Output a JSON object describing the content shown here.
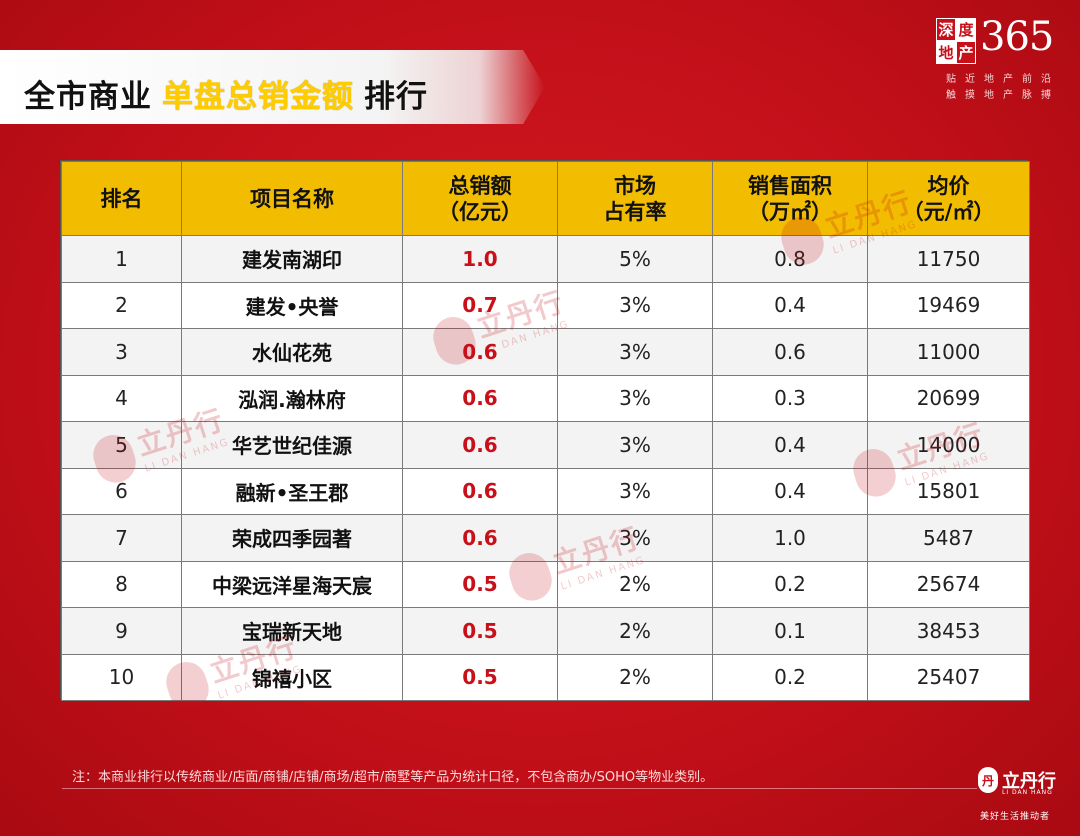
{
  "title": {
    "part1": "全市商业",
    "part2": "单盘总销金额",
    "part3": "排行"
  },
  "logo": {
    "chars": [
      "深",
      "度",
      "地",
      "产"
    ],
    "number": "365",
    "slogan_line1": "贴近地产前沿",
    "slogan_line2": "触摸地产脉搏"
  },
  "table": {
    "headers": {
      "rank": "排名",
      "project": "项目名称",
      "sales_line1": "总销额",
      "sales_line2": "（亿元）",
      "share_line1": "市场",
      "share_line2": "占有率",
      "area_line1": "销售面积",
      "area_line2": "（万㎡）",
      "price_line1": "均价",
      "price_line2": "（元/㎡）"
    },
    "rows": [
      {
        "rank": "1",
        "project": "建发南湖印",
        "sales": "1.0",
        "share": "5%",
        "area": "0.8",
        "price": "11750"
      },
      {
        "rank": "2",
        "project": "建发•央誉",
        "sales": "0.7",
        "share": "3%",
        "area": "0.4",
        "price": "19469"
      },
      {
        "rank": "3",
        "project": "水仙花苑",
        "sales": "0.6",
        "share": "3%",
        "area": "0.6",
        "price": "11000"
      },
      {
        "rank": "4",
        "project": "泓润.瀚林府",
        "sales": "0.6",
        "share": "3%",
        "area": "0.3",
        "price": "20699"
      },
      {
        "rank": "5",
        "project": "华艺世纪佳源",
        "sales": "0.6",
        "share": "3%",
        "area": "0.4",
        "price": "14000"
      },
      {
        "rank": "6",
        "project": "融新•圣王郡",
        "sales": "0.6",
        "share": "3%",
        "area": "0.4",
        "price": "15801"
      },
      {
        "rank": "7",
        "project": "荣成四季园著",
        "sales": "0.6",
        "share": "3%",
        "area": "1.0",
        "price": "5487"
      },
      {
        "rank": "8",
        "project": "中梁远洋星海天宸",
        "sales": "0.5",
        "share": "2%",
        "area": "0.2",
        "price": "25674"
      },
      {
        "rank": "9",
        "project": "宝瑞新天地",
        "sales": "0.5",
        "share": "2%",
        "area": "0.1",
        "price": "38453"
      },
      {
        "rank": "10",
        "project": "锦禧小区",
        "sales": "0.5",
        "share": "2%",
        "area": "0.2",
        "price": "25407"
      }
    ]
  },
  "watermark": {
    "cn": "立丹行",
    "en": "LI DAN HANG"
  },
  "footnote": "注：本商业排行以传统商业/店面/商铺/店铺/商场/超市/商墅等产品为统计口径，不包含商办/SOHO等物业类别。",
  "footer_logo": {
    "seal_char": "丹",
    "name": "立丹行",
    "en": "LI DAN HANG",
    "slogan": "美好生活推动者"
  },
  "colors": {
    "background": "#c8101a",
    "header": "#f2bc00",
    "title_highlight": "#ffcc00",
    "sales_value": "#c8101a"
  }
}
